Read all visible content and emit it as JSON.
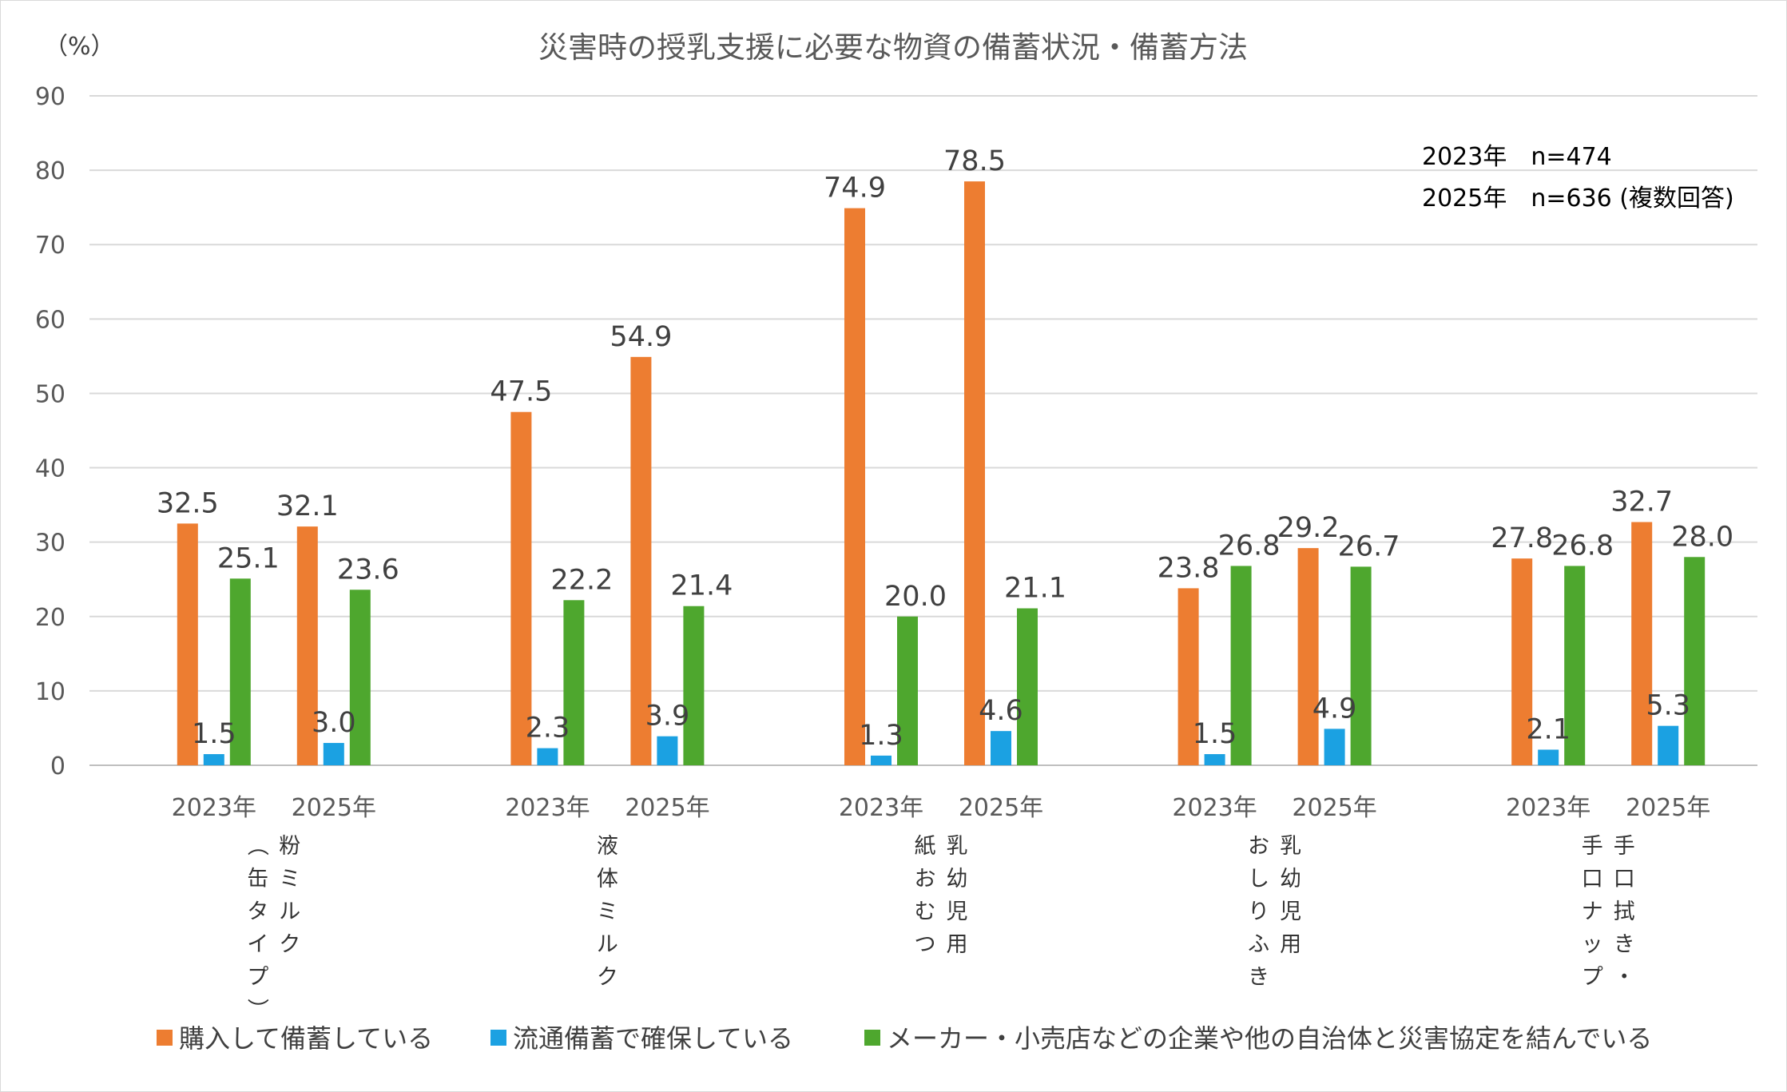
{
  "chart_data": {
    "type": "bar",
    "title": "災害時の授乳支援に必要な物資の備蓄状況・備蓄方法",
    "ylabel": "（%）",
    "ylim": [
      0,
      90
    ],
    "yticks": [
      0,
      10,
      20,
      30,
      40,
      50,
      60,
      70,
      80,
      90
    ],
    "grid": true,
    "legend_position": "bottom",
    "note_lines": [
      "2023年　n=474",
      "2025年　n=636 (複数回答)"
    ],
    "categories": [
      {
        "name": "粉ミルク（缶タイプ）",
        "columns": [
          "粉ミルク",
          "（缶タイプ）"
        ],
        "years": [
          "2023年",
          "2025年"
        ]
      },
      {
        "name": "液体ミルク",
        "columns": [
          "液体ミルク"
        ],
        "years": [
          "2023年",
          "2025年"
        ]
      },
      {
        "name": "乳幼児用紙おむつ",
        "columns": [
          "乳幼児用",
          "紙おむつ"
        ],
        "years": [
          "2023年",
          "2025年"
        ]
      },
      {
        "name": "乳幼児用おしりふき",
        "columns": [
          "乳幼児用",
          "おしりふき"
        ],
        "years": [
          "2023年",
          "2025年"
        ]
      },
      {
        "name": "手口拭き・手口ナップ",
        "columns": [
          "手口拭き・",
          "手口ナップ"
        ],
        "years": [
          "2023年",
          "2025年"
        ]
      }
    ],
    "series": [
      {
        "name": "購入して備蓄している",
        "color": "#ED7D31",
        "values": [
          [
            32.5,
            32.1
          ],
          [
            47.5,
            54.9
          ],
          [
            74.9,
            78.5
          ],
          [
            23.8,
            29.2
          ],
          [
            27.8,
            32.7
          ]
        ]
      },
      {
        "name": "流通備蓄で確保している",
        "color": "#1BA1E2",
        "values": [
          [
            1.5,
            3.0
          ],
          [
            2.3,
            3.9
          ],
          [
            1.3,
            4.6
          ],
          [
            1.5,
            4.9
          ],
          [
            2.1,
            5.3
          ]
        ]
      },
      {
        "name": "メーカー・小売店などの企業や他の自治体と災害協定を結んでいる",
        "color": "#4EA72E",
        "values": [
          [
            25.1,
            23.6
          ],
          [
            22.2,
            21.4
          ],
          [
            20.0,
            21.1
          ],
          [
            26.8,
            26.7
          ],
          [
            26.8,
            28.0
          ]
        ]
      }
    ]
  }
}
